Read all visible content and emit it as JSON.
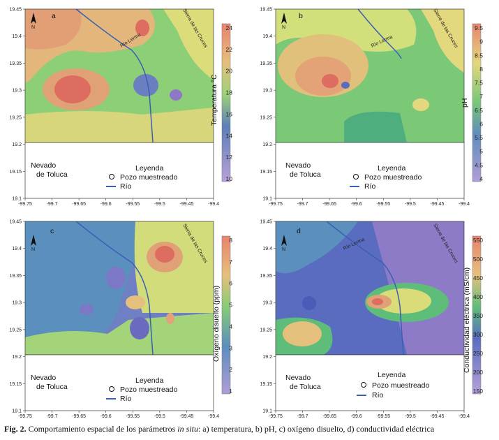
{
  "common": {
    "x_ticks": [
      "-99.75",
      "-99.7",
      "-99.65",
      "-99.6",
      "-99.55",
      "-99.5",
      "-99.45",
      "-99.4"
    ],
    "y_ticks": [
      "19.45",
      "19.4",
      "19.35",
      "19.3",
      "19.25",
      "19.2",
      "19.15",
      "19.1"
    ],
    "nevado": [
      "Nevado",
      "de Toluca"
    ],
    "sierra": "Sierra de las Cruces",
    "rio_lerma": "Río Lerma",
    "legend_title": "Leyenda",
    "legend_well": "Pozo muestreado",
    "legend_river": "Río",
    "north": "N"
  },
  "panels": [
    {
      "letter": "a",
      "colorbar_title": "Temperatura °C",
      "ticks": [
        "24",
        "22",
        "20",
        "18",
        "16",
        "14",
        "12",
        "10"
      ],
      "colors": [
        "#e8836f",
        "#eaa07a",
        "#e5c07d",
        "#d9dc79",
        "#9bd178",
        "#64bf74",
        "#5e7fb8",
        "#8d77c6",
        "#b7a1d8"
      ]
    },
    {
      "letter": "b",
      "colorbar_title": "pH",
      "ticks": [
        "9.5",
        "9",
        "8.5",
        "8",
        "7.5",
        "7",
        "6.5",
        "6",
        "5.5",
        "5",
        "4.5",
        "4"
      ],
      "colors": [
        "#e8836f",
        "#eaa07a",
        "#e5c07d",
        "#e3d87d",
        "#d6e07a",
        "#a8d77a",
        "#78c677",
        "#4fae7e",
        "#5f8dbb",
        "#6a76bd",
        "#8c78c4",
        "#b09ed6"
      ]
    },
    {
      "letter": "c",
      "colorbar_title": "Oxígeno disuelto (ppm)",
      "ticks": [
        "8",
        "7",
        "6",
        "5",
        "4",
        "3",
        "2",
        "1"
      ],
      "colors": [
        "#e8836f",
        "#eaa07a",
        "#e5c07d",
        "#d5dc7a",
        "#86cc77",
        "#4faf8b",
        "#5d8dbe",
        "#7d78c5",
        "#b09ed6"
      ]
    },
    {
      "letter": "d",
      "colorbar_title": "Conductividad eléctrica (mS/cm)",
      "ticks": [
        "550",
        "500",
        "450",
        "400",
        "350",
        "300",
        "250",
        "200",
        "150"
      ],
      "colors": [
        "#e8836f",
        "#eaa07a",
        "#e5c07d",
        "#d9dc79",
        "#9bd178",
        "#5fbd7a",
        "#4e8ec0",
        "#5a6cc0",
        "#8d7bc8",
        "#b7a1d8"
      ]
    }
  ],
  "caption": {
    "fig": "Fig. 2.",
    "prefix": "Comportamiento espacial de los parámetros",
    "in_situ": "in situ",
    "suffix": ": a) temperatura, b) pH, c) oxígeno disuelto, d) conductividad eléctrica"
  }
}
